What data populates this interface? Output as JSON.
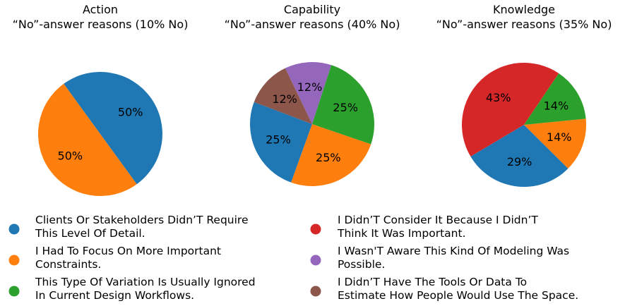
{
  "colors": {
    "blue": "#1f77b4",
    "orange": "#ff7f0e",
    "green": "#2ca02c",
    "red": "#d62728",
    "purple": "#9467bd",
    "brown": "#8c564b"
  },
  "legend": [
    {
      "color": "#1f77b4",
      "lines": [
        "Clients Or Stakeholders Didn’T Require",
        "This Level Of Detail."
      ]
    },
    {
      "color": "#ff7f0e",
      "lines": [
        "I Had To Focus On More Important",
        "Constraints."
      ]
    },
    {
      "color": "#2ca02c",
      "lines": [
        "This Type Of Variation Is Usually Ignored",
        "In Current Design Workflows."
      ]
    },
    {
      "color": "#d62728",
      "lines": [
        "I Didn’T Consider It Because I Didn’T",
        "Think It Was Important."
      ]
    },
    {
      "color": "#9467bd",
      "lines": [
        "I Wasn'T Aware This Kind Of Modeling Was",
        "Possible."
      ]
    },
    {
      "color": "#8c564b",
      "lines": [
        "I Didn’T Have The Tools Or Data To",
        "Estimate How People Would Use The Space."
      ]
    }
  ],
  "chart_data": [
    {
      "type": "pie",
      "title": [
        "Action",
        "“No”-answer reasons  (10% No)"
      ],
      "slices": [
        {
          "value": 50,
          "label": "50%",
          "color": "#ff7f0e"
        },
        {
          "value": 50,
          "label": "50%",
          "color": "#1f77b4"
        }
      ]
    },
    {
      "type": "pie",
      "title": [
        "Capability",
        "“No”-answer reasons  (40% No)"
      ],
      "slices": [
        {
          "value": 12,
          "label": "12%",
          "color": "#9467bd"
        },
        {
          "value": 12,
          "label": "12%",
          "color": "#8c564b"
        },
        {
          "value": 25,
          "label": "25%",
          "color": "#1f77b4"
        },
        {
          "value": 25,
          "label": "25%",
          "color": "#ff7f0e"
        },
        {
          "value": 25,
          "label": "25%",
          "color": "#2ca02c"
        }
      ]
    },
    {
      "type": "pie",
      "title": [
        "Knowledge",
        "“No”-answer reasons  (35% No)"
      ],
      "slices": [
        {
          "value": 43,
          "label": "43%",
          "color": "#d62728"
        },
        {
          "value": 29,
          "label": "29%",
          "color": "#1f77b4"
        },
        {
          "value": 14,
          "label": "14%",
          "color": "#ff7f0e"
        },
        {
          "value": 14,
          "label": "14%",
          "color": "#2ca02c"
        }
      ]
    }
  ]
}
